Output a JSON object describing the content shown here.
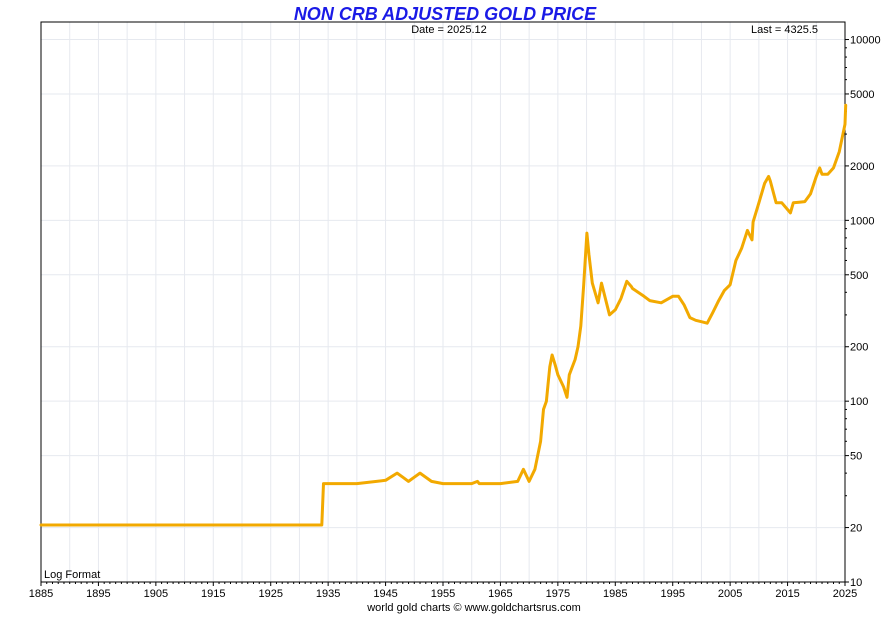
{
  "colors": {
    "title": "#1a1ae6",
    "line": "#f2a900",
    "grid": "#e6e9ef",
    "frame": "#000000",
    "background": "#ffffff"
  },
  "chart_data": {
    "type": "line",
    "title": "NON CRB ADJUSTED GOLD PRICE",
    "date_readout": "Date = 2025.12",
    "last_readout": "Last = 4325.5",
    "scale_note": "Log Format",
    "footer": "world gold charts © www.goldchartsrus.com",
    "y_scale": "log",
    "grid": true,
    "xlim": [
      1885,
      2025
    ],
    "ylim": [
      10,
      12500
    ],
    "x_ticks": [
      1885,
      1895,
      1905,
      1915,
      1925,
      1935,
      1945,
      1955,
      1965,
      1975,
      1985,
      1995,
      2005,
      2015,
      2025
    ],
    "y_ticks": [
      10,
      20,
      50,
      100,
      200,
      500,
      1000,
      2000,
      5000,
      10000
    ],
    "series": [
      {
        "x": [
          1885,
          1933.9,
          1934.2,
          1940,
          1945,
          1947,
          1948,
          1949,
          1950,
          1951,
          1953,
          1955,
          1960,
          1961,
          1961.3,
          1965,
          1968,
          1969,
          1970,
          1971,
          1972,
          1972.5,
          1973,
          1973.3,
          1973.6,
          1974,
          1974.5,
          1975,
          1976,
          1976.6,
          1977,
          1978,
          1978.5,
          1979,
          1979.5,
          1980.05,
          1980.4,
          1981,
          1982,
          1982.6,
          1983,
          1984,
          1985,
          1986,
          1987,
          1987.8,
          1988,
          1990,
          1991,
          1993,
          1995,
          1996,
          1997,
          1998,
          1999,
          2000,
          2001,
          2002,
          2003,
          2004,
          2005,
          2006,
          2007,
          2008,
          2008.8,
          2009,
          2010,
          2011,
          2011.7,
          2012,
          2013,
          2014,
          2015.5,
          2016,
          2017,
          2018,
          2019,
          2020,
          2020.6,
          2021,
          2022,
          2023,
          2024,
          2025,
          2025.12
        ],
        "y": [
          20.67,
          20.67,
          35,
          35,
          36.5,
          40,
          38,
          36,
          38,
          40,
          36,
          35,
          35,
          36,
          35,
          35,
          36,
          42,
          36,
          42,
          60,
          90,
          100,
          125,
          155,
          180,
          160,
          140,
          120,
          105,
          140,
          170,
          200,
          260,
          440,
          850,
          650,
          450,
          350,
          450,
          400,
          300,
          320,
          370,
          460,
          430,
          420,
          380,
          360,
          350,
          380,
          380,
          340,
          290,
          280,
          275,
          270,
          310,
          360,
          410,
          440,
          600,
          700,
          880,
          780,
          980,
          1250,
          1600,
          1750,
          1650,
          1250,
          1250,
          1100,
          1250,
          1260,
          1270,
          1400,
          1750,
          1950,
          1800,
          1800,
          1950,
          2400,
          3400,
          4325.5
        ]
      }
    ]
  }
}
